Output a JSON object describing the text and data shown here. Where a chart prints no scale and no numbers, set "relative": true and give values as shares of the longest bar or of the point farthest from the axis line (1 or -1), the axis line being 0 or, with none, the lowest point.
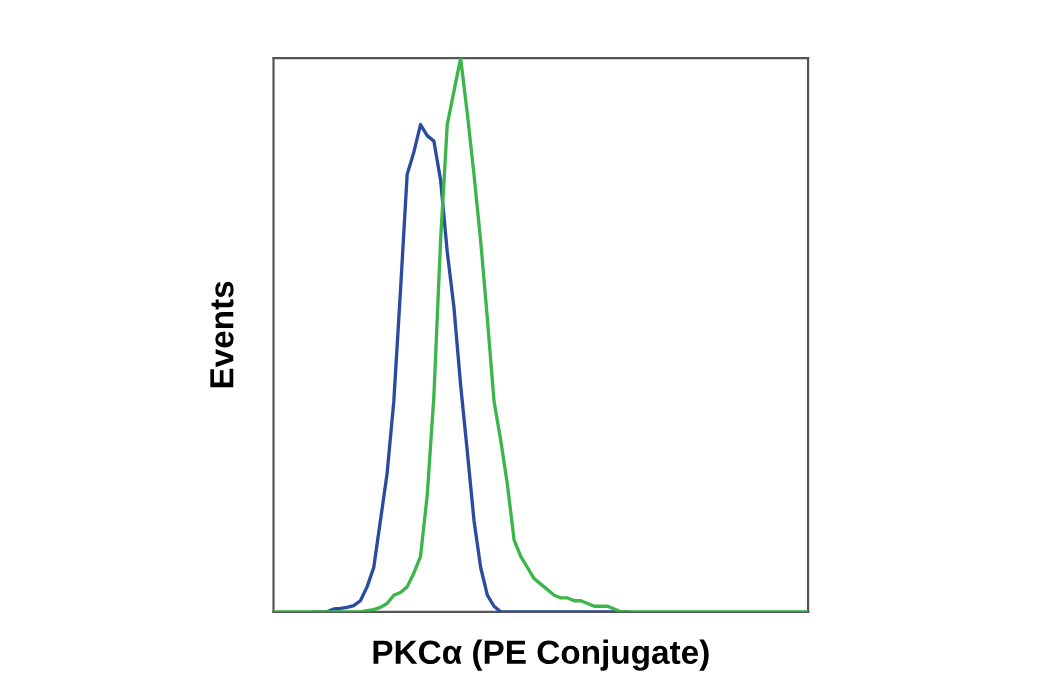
{
  "chart_data": {
    "type": "line",
    "relative": true,
    "xlabel": "PKCα (PE Conjugate)",
    "ylabel": "Events",
    "categories": [
      null,
      null,
      null,
      null,
      null,
      null,
      null,
      null,
      null,
      null,
      null,
      null,
      null,
      null,
      null,
      null,
      null,
      null,
      null,
      null,
      null,
      null,
      null,
      null,
      null,
      null,
      null,
      null,
      null,
      null,
      null,
      null,
      null,
      null,
      null,
      null,
      null,
      null,
      null,
      null,
      null,
      null,
      null,
      null,
      null,
      null,
      null,
      null,
      null,
      null,
      null,
      null,
      null,
      null,
      null,
      null,
      null,
      null,
      null,
      null,
      null,
      null,
      null,
      null,
      null,
      null,
      null,
      null,
      null,
      null,
      null,
      null,
      null,
      null,
      null,
      null,
      null,
      null,
      null,
      null,
      null
    ],
    "series": [
      {
        "color": "#2b4ba0",
        "values": [
          null,
          null,
          null,
          null,
          null,
          null,
          0,
          0,
          0,
          0.005,
          0.006,
          0.008,
          0.011,
          0.02,
          0.045,
          0.08,
          0.165,
          0.25,
          0.38,
          0.58,
          0.79,
          0.83,
          0.88,
          0.86,
          0.85,
          0.78,
          0.65,
          0.55,
          0.41,
          0.29,
          0.165,
          0.08,
          0.03,
          0.01,
          0,
          0,
          0,
          0,
          0,
          0,
          0,
          0,
          0,
          0,
          0,
          0,
          0,
          0,
          0,
          0,
          0,
          0,
          0,
          0,
          null,
          null,
          null,
          null,
          null,
          null,
          null,
          null,
          null,
          null,
          null,
          null,
          null,
          null,
          null,
          null,
          null,
          null,
          null,
          null,
          null,
          null,
          null,
          null,
          null,
          null,
          null
        ]
      },
      {
        "color": "#3cb54a",
        "values": [
          0,
          0,
          0,
          0,
          0,
          0,
          0,
          0,
          0,
          0,
          0,
          0,
          0,
          0,
          0.002,
          0.004,
          0.008,
          0.015,
          0.03,
          0.035,
          0.045,
          0.07,
          0.1,
          0.21,
          0.39,
          0.67,
          0.88,
          0.94,
          1,
          0.9,
          0.79,
          0.67,
          0.53,
          0.38,
          0.31,
          0.23,
          0.13,
          0.1,
          0.08,
          0.06,
          0.05,
          0.04,
          0.03,
          0.025,
          0.025,
          0.02,
          0.02,
          0.015,
          0.01,
          0.01,
          0.01,
          0.005,
          0,
          0,
          0,
          0,
          0,
          0,
          0,
          0,
          0,
          0,
          0,
          0,
          0,
          0,
          0,
          0,
          0,
          0,
          0,
          0,
          0,
          0,
          0,
          0,
          0,
          0,
          0,
          0,
          0
        ]
      }
    ]
  }
}
